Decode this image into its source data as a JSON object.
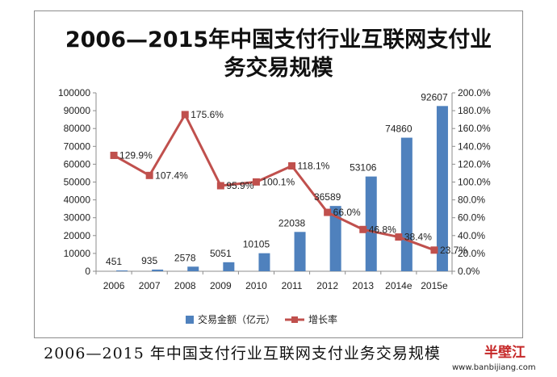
{
  "chart_data": {
    "type": "bar+line",
    "title_line1": "2006—2015年中国支付行业互联网支付业",
    "title_line2": "务交易规模",
    "categories": [
      "2006",
      "2007",
      "2008",
      "2009",
      "2010",
      "2011",
      "2012",
      "2013",
      "2014e",
      "2015e"
    ],
    "series": [
      {
        "name": "交易金额（亿元）",
        "type": "bar",
        "axis": "left",
        "color": "#4f81bd",
        "values": [
          451,
          935,
          2578,
          5051,
          10105,
          22038,
          36589,
          53106,
          74860,
          92607
        ],
        "labels": [
          "451",
          "935",
          "2578",
          "5051",
          "10105",
          "22038",
          "36589",
          "53106",
          "74860",
          "92607"
        ]
      },
      {
        "name": "增长率",
        "type": "line",
        "axis": "right",
        "color": "#c0504d",
        "values": [
          129.9,
          107.4,
          175.6,
          95.9,
          100.1,
          118.1,
          66.0,
          46.8,
          38.4,
          23.7
        ],
        "labels": [
          "129.9%",
          "107.4%",
          "175.6%",
          "95.9%",
          "100.1%",
          "118.1%",
          "66.0%",
          "46.8%",
          "38.4%",
          "23.7%"
        ]
      }
    ],
    "y_left": {
      "min": 0,
      "max": 100000,
      "step": 10000,
      "ticks": [
        "0",
        "10000",
        "20000",
        "30000",
        "40000",
        "50000",
        "60000",
        "70000",
        "80000",
        "90000",
        "100000"
      ]
    },
    "y_right": {
      "min": 0,
      "max": 200,
      "step": 20,
      "ticks": [
        "0.0%",
        "20.0%",
        "40.0%",
        "60.0%",
        "80.0%",
        "100.0%",
        "120.0%",
        "140.0%",
        "160.0%",
        "180.0%",
        "200.0%"
      ]
    },
    "grid": false,
    "legend_position": "bottom"
  },
  "caption": "2006—2015 年中国支付行业互联网支付业务交易规模",
  "watermark": {
    "logo": "半壁江",
    "url": "www.banbijiang.com"
  }
}
